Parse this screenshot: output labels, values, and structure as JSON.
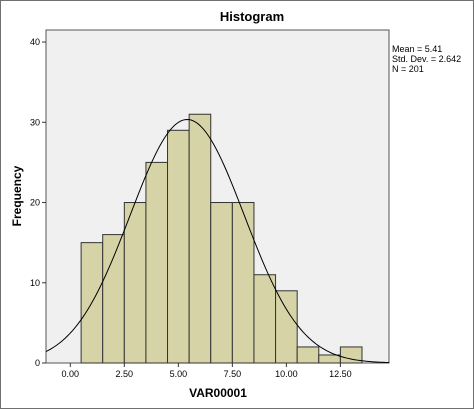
{
  "chart_data": {
    "type": "histogram",
    "title": "Histogram",
    "xlabel": "VAR00001",
    "ylabel": "Frequency",
    "xlim": [
      -1.125,
      14.75
    ],
    "ylim": [
      0,
      41.5
    ],
    "x_ticks": [
      {
        "value": 0,
        "label": "0.00"
      },
      {
        "value": 2.5,
        "label": "2.50"
      },
      {
        "value": 5,
        "label": "5.00"
      },
      {
        "value": 7.5,
        "label": "7.50"
      },
      {
        "value": 10,
        "label": "10.00"
      },
      {
        "value": 12.5,
        "label": "12.50"
      }
    ],
    "y_ticks": [
      0,
      10,
      20,
      30,
      40
    ],
    "bin_width": 1,
    "bins": [
      {
        "start": 0.5,
        "count": 15
      },
      {
        "start": 1.5,
        "count": 16
      },
      {
        "start": 2.5,
        "count": 20
      },
      {
        "start": 3.5,
        "count": 25
      },
      {
        "start": 4.5,
        "count": 29
      },
      {
        "start": 5.5,
        "count": 31
      },
      {
        "start": 6.5,
        "count": 20
      },
      {
        "start": 7.5,
        "count": 20
      },
      {
        "start": 8.5,
        "count": 11
      },
      {
        "start": 9.5,
        "count": 9
      },
      {
        "start": 10.5,
        "count": 2
      },
      {
        "start": 11.5,
        "count": 1
      },
      {
        "start": 12.5,
        "count": 2
      }
    ],
    "normal_curve": {
      "mean": 5.41,
      "sd": 2.642,
      "n": 201
    },
    "stats_text": [
      "Mean = 5.41",
      "Std. Dev. = 2.642",
      "N = 201"
    ],
    "grid": false,
    "colors": {
      "bar_fill": "#d6d4a7",
      "bar_stroke": "#333333",
      "plot_bg": "#f0f0f0",
      "curve": "#000000"
    }
  }
}
